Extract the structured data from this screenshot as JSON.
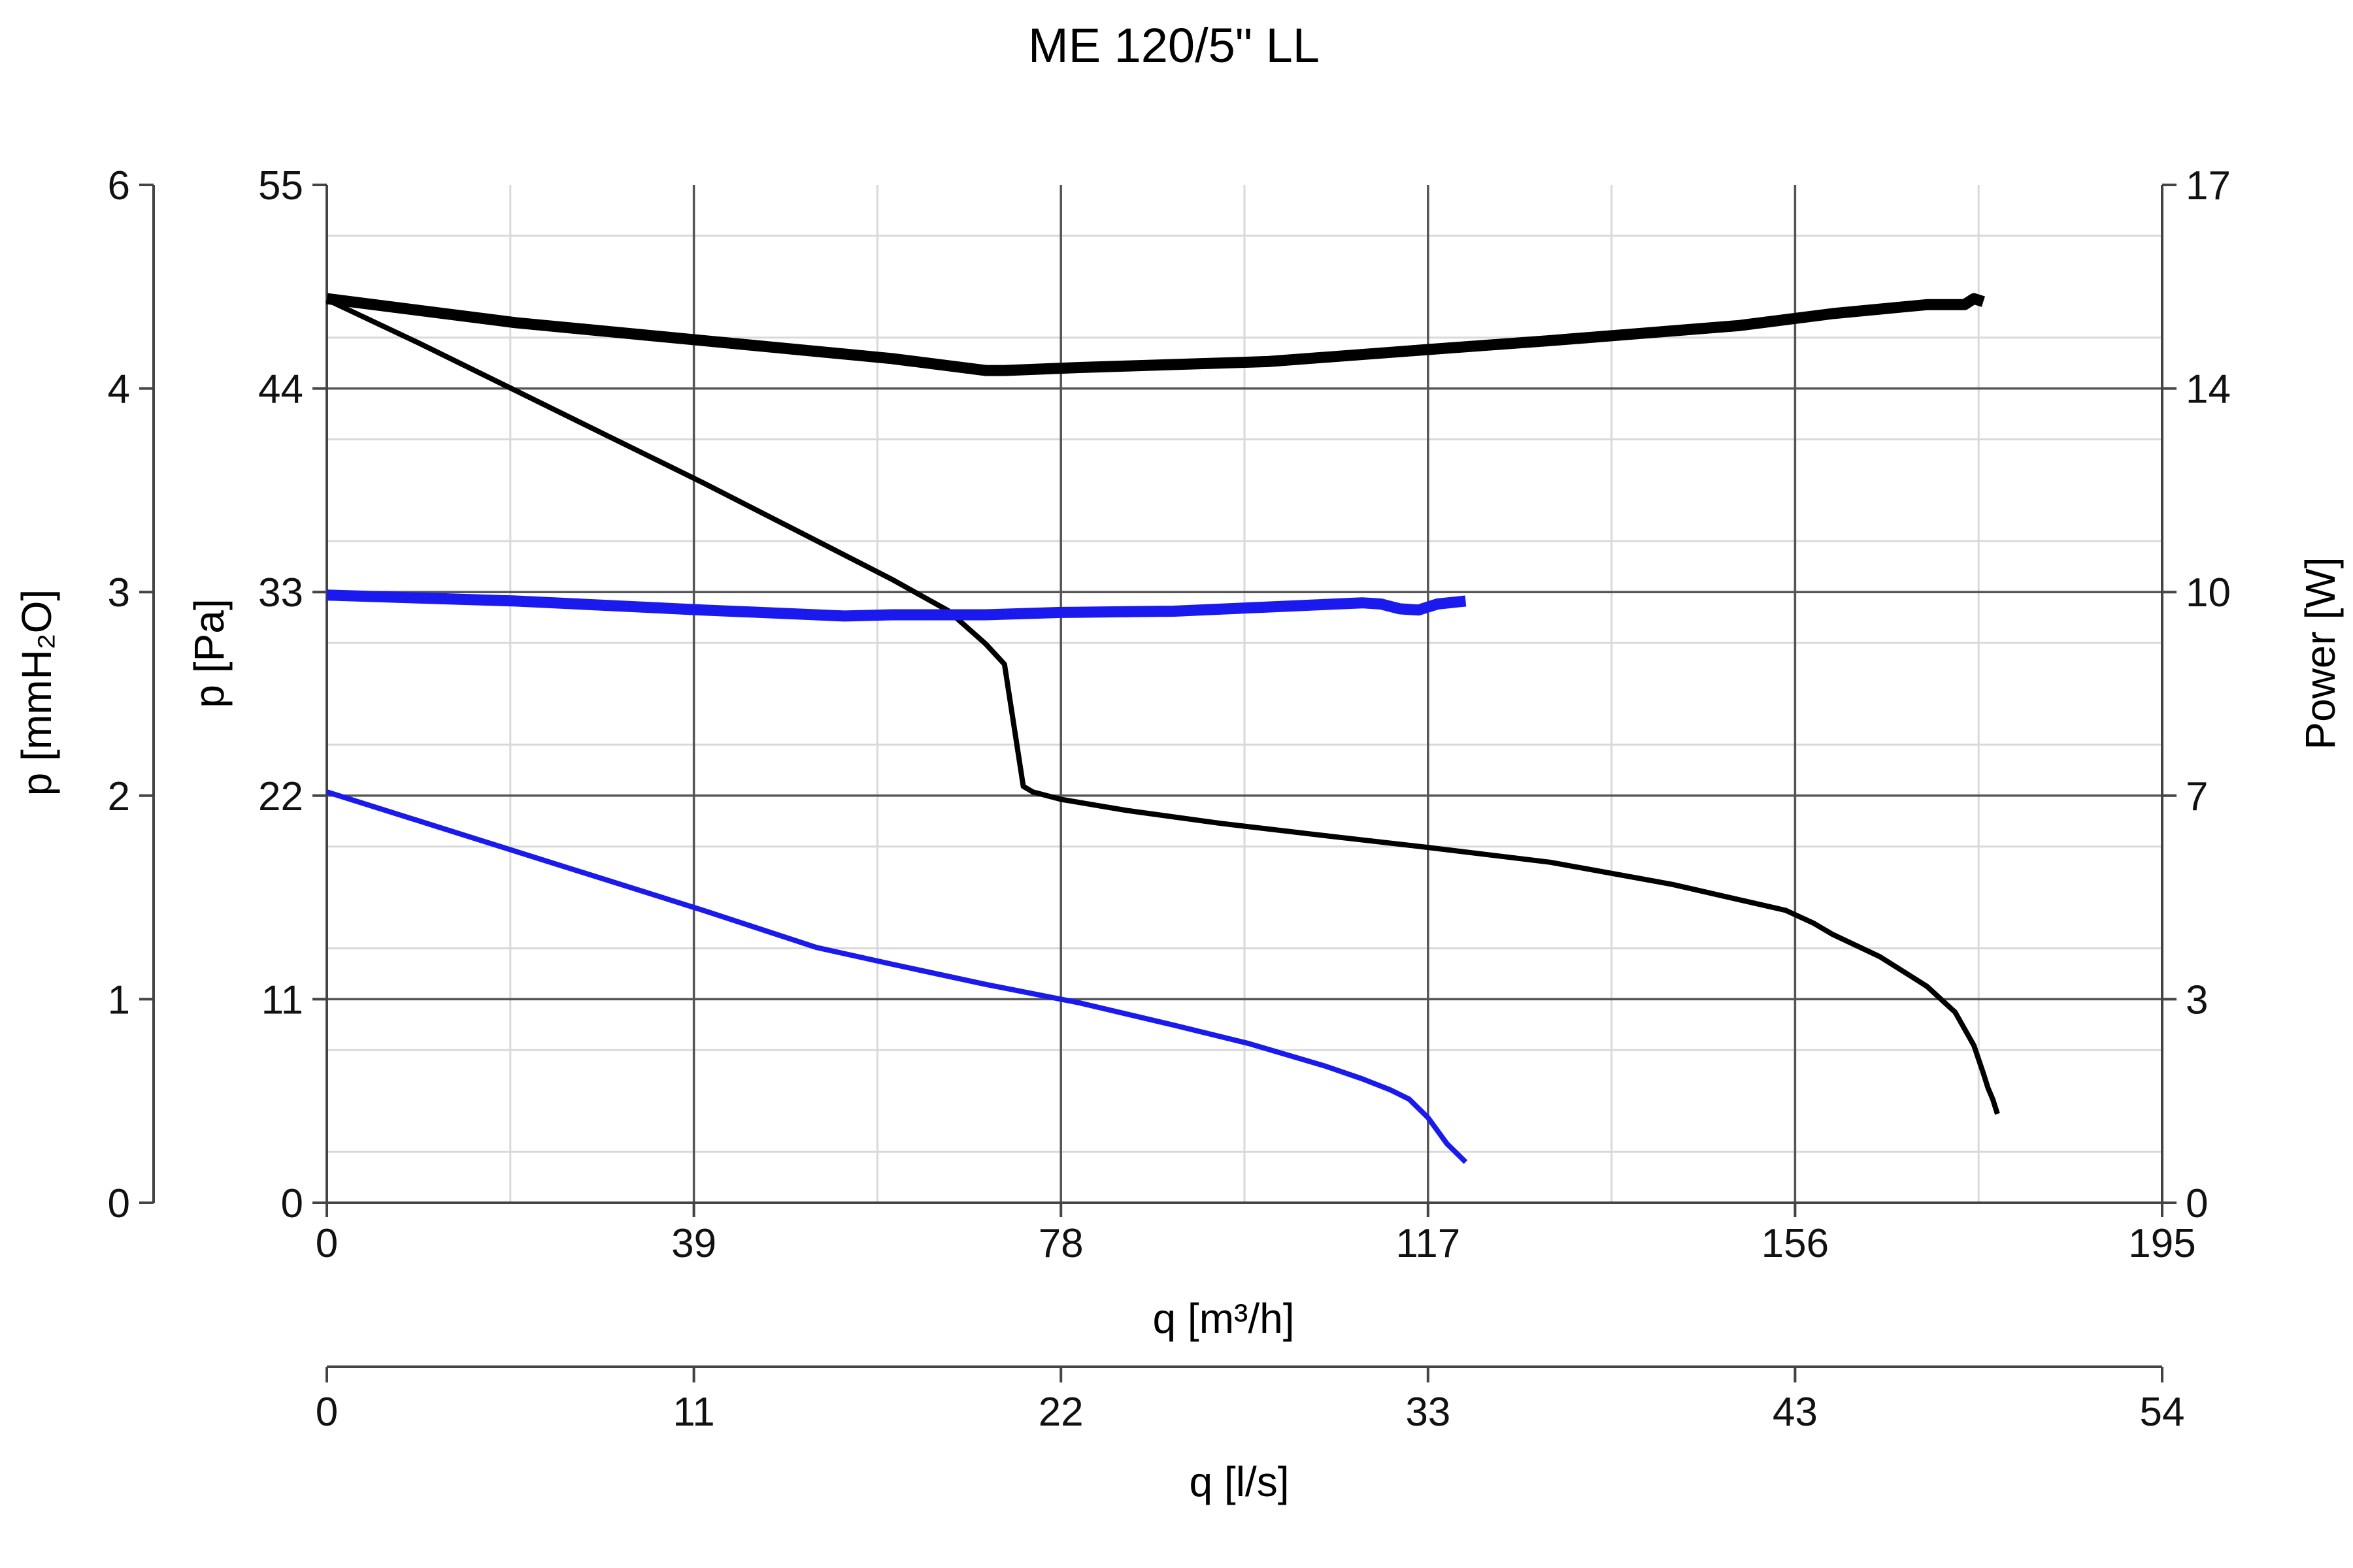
{
  "chart_data": {
    "type": "line",
    "title": "ME 120/5\" LL",
    "xlabel": "q [m³/h]",
    "x2label": "q [l/s]",
    "ylabel": "p [Pa]",
    "y2label": "p [mmH₂O]",
    "y3label": "Power [W]",
    "xlim": [
      0,
      195
    ],
    "ylim": [
      0,
      55
    ],
    "grid": true,
    "ticks": {
      "x_m3h": [
        "0",
        "39",
        "78",
        "117",
        "156",
        "195"
      ],
      "x_ls": [
        "0",
        "11",
        "22",
        "33",
        "43",
        "54"
      ],
      "y_pa": [
        "0",
        "11",
        "22",
        "33",
        "44",
        "55"
      ],
      "y_mmh2o": [
        "0",
        "1",
        "2",
        "3",
        "4",
        "6"
      ],
      "y_power": [
        "0",
        "3",
        "7",
        "10",
        "14",
        "17"
      ]
    },
    "series": [
      {
        "axis": "pressure",
        "color": "#000000",
        "width": "thin",
        "points": [
          [
            0,
            48.8
          ],
          [
            10,
            46.4
          ],
          [
            20,
            43.9
          ],
          [
            30,
            41.4
          ],
          [
            40,
            38.9
          ],
          [
            50,
            36.3
          ],
          [
            60,
            33.7
          ],
          [
            66,
            32.0
          ],
          [
            70,
            30.2
          ],
          [
            72,
            29.1
          ],
          [
            74,
            22.5
          ],
          [
            75,
            22.2
          ],
          [
            78,
            21.8
          ],
          [
            85,
            21.2
          ],
          [
            95,
            20.5
          ],
          [
            105,
            19.9
          ],
          [
            117,
            19.2
          ],
          [
            130,
            18.4
          ],
          [
            143,
            17.2
          ],
          [
            155,
            15.8
          ],
          [
            158,
            15.1
          ],
          [
            160,
            14.5
          ],
          [
            165,
            13.3
          ],
          [
            170,
            11.7
          ],
          [
            173,
            10.3
          ],
          [
            175,
            8.5
          ],
          [
            176,
            7.0
          ],
          [
            176.5,
            6.2
          ],
          [
            177,
            5.6
          ],
          [
            177.5,
            4.8
          ]
        ]
      },
      {
        "axis": "power",
        "color": "#000000",
        "width": "thick",
        "points": [
          [
            0,
            15.1
          ],
          [
            20,
            14.7
          ],
          [
            40,
            14.4
          ],
          [
            60,
            14.1
          ],
          [
            70,
            13.9
          ],
          [
            72,
            13.9
          ],
          [
            80,
            13.95
          ],
          [
            100,
            14.05
          ],
          [
            117,
            14.25
          ],
          [
            130,
            14.4
          ],
          [
            150,
            14.65
          ],
          [
            160,
            14.85
          ],
          [
            170,
            15.0
          ],
          [
            174,
            15.0
          ],
          [
            175,
            15.1
          ],
          [
            176,
            15.05
          ]
        ]
      },
      {
        "axis": "pressure",
        "color": "#1a1aee",
        "width": "thin",
        "points": [
          [
            0,
            22.2
          ],
          [
            20,
            19.0
          ],
          [
            40,
            15.8
          ],
          [
            52,
            13.8
          ],
          [
            60,
            12.9
          ],
          [
            70,
            11.8
          ],
          [
            80,
            10.8
          ],
          [
            90,
            9.6
          ],
          [
            98,
            8.6
          ],
          [
            102,
            8.0
          ],
          [
            106,
            7.4
          ],
          [
            110,
            6.7
          ],
          [
            113,
            6.1
          ],
          [
            115,
            5.6
          ],
          [
            117,
            4.6
          ],
          [
            119,
            3.2
          ],
          [
            121,
            2.2
          ]
        ]
      },
      {
        "axis": "power",
        "color": "#1a1aee",
        "width": "thick",
        "points": [
          [
            0,
            10.15
          ],
          [
            20,
            10.05
          ],
          [
            40,
            9.9
          ],
          [
            55,
            9.8
          ],
          [
            60,
            9.82
          ],
          [
            70,
            9.82
          ],
          [
            78,
            9.86
          ],
          [
            90,
            9.88
          ],
          [
            100,
            9.95
          ],
          [
            110,
            10.02
          ],
          [
            112,
            10.0
          ],
          [
            114,
            9.92
          ],
          [
            116,
            9.9
          ],
          [
            118,
            10.0
          ],
          [
            121,
            10.05
          ]
        ]
      }
    ]
  }
}
